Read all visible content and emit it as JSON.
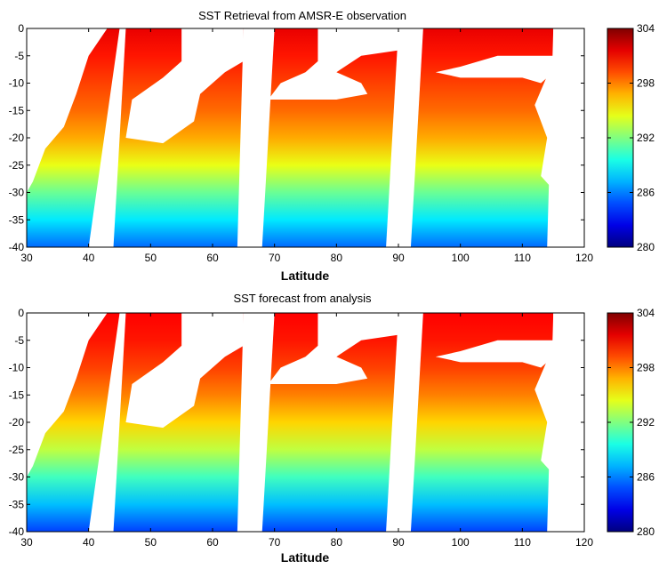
{
  "figure": {
    "xlabel": "Latitude",
    "colormap": "jet",
    "land_color": "#ffffff"
  },
  "chart_data": [
    {
      "type": "heatmap",
      "title": "SST Retrieval from AMSR-E observation",
      "xlabel": "Latitude",
      "ylabel": "",
      "xlim": [
        30,
        120
      ],
      "ylim": [
        -40,
        0
      ],
      "x_ticks": [
        30,
        40,
        50,
        60,
        70,
        80,
        90,
        100,
        110,
        120
      ],
      "y_ticks": [
        0,
        -5,
        -10,
        -15,
        -20,
        -25,
        -30,
        -35,
        -40
      ],
      "colorbar": {
        "min": 280,
        "max": 304,
        "ticks": [
          304,
          298,
          292,
          286,
          280
        ]
      },
      "grid": false,
      "sst_profile": [
        {
          "lat": 0,
          "value": 301.5
        },
        {
          "lat": -5,
          "value": 300.5
        },
        {
          "lat": -10,
          "value": 299.5
        },
        {
          "lat": -15,
          "value": 298.5
        },
        {
          "lat": -20,
          "value": 297
        },
        {
          "lat": -25,
          "value": 294.5
        },
        {
          "lat": -30,
          "value": 291.5
        },
        {
          "lat": -35,
          "value": 288.5
        },
        {
          "lat": -40,
          "value": 285.5
        }
      ],
      "swaths": [
        {
          "name": "swath-1",
          "x_top": [
            30,
            45
          ],
          "x_bottom": [
            30,
            40
          ]
        },
        {
          "name": "swath-2",
          "x_top": [
            46,
            65
          ],
          "x_bottom": [
            44,
            64
          ]
        },
        {
          "name": "swath-3",
          "x_top": [
            70,
            90
          ],
          "x_bottom": [
            68,
            88
          ]
        },
        {
          "name": "swath-4",
          "x_top": [
            94,
            115
          ],
          "x_bottom": [
            92,
            114
          ]
        }
      ]
    },
    {
      "type": "heatmap",
      "title": "SST forecast from analysis",
      "xlabel": "Latitude",
      "ylabel": "",
      "xlim": [
        30,
        120
      ],
      "ylim": [
        -40,
        0
      ],
      "x_ticks": [
        30,
        40,
        50,
        60,
        70,
        80,
        90,
        100,
        110,
        120
      ],
      "y_ticks": [
        0,
        -5,
        -10,
        -15,
        -20,
        -25,
        -30,
        -35,
        -40
      ],
      "colorbar": {
        "min": 280,
        "max": 304,
        "ticks": [
          304,
          298,
          292,
          286,
          280
        ]
      },
      "grid": false,
      "sst_profile": [
        {
          "lat": 0,
          "value": 301
        },
        {
          "lat": -5,
          "value": 300.5
        },
        {
          "lat": -10,
          "value": 299.5
        },
        {
          "lat": -15,
          "value": 298
        },
        {
          "lat": -20,
          "value": 296
        },
        {
          "lat": -25,
          "value": 293.5
        },
        {
          "lat": -30,
          "value": 290.5
        },
        {
          "lat": -35,
          "value": 287.5
        },
        {
          "lat": -40,
          "value": 284.5
        }
      ],
      "swaths": [
        {
          "name": "swath-1",
          "x_top": [
            30,
            45
          ],
          "x_bottom": [
            30,
            40
          ]
        },
        {
          "name": "swath-2",
          "x_top": [
            46,
            65
          ],
          "x_bottom": [
            44,
            64
          ]
        },
        {
          "name": "swath-3",
          "x_top": [
            70,
            90
          ],
          "x_bottom": [
            68,
            88
          ]
        },
        {
          "name": "swath-4",
          "x_top": [
            94,
            115
          ],
          "x_bottom": [
            92,
            114
          ]
        }
      ]
    }
  ]
}
